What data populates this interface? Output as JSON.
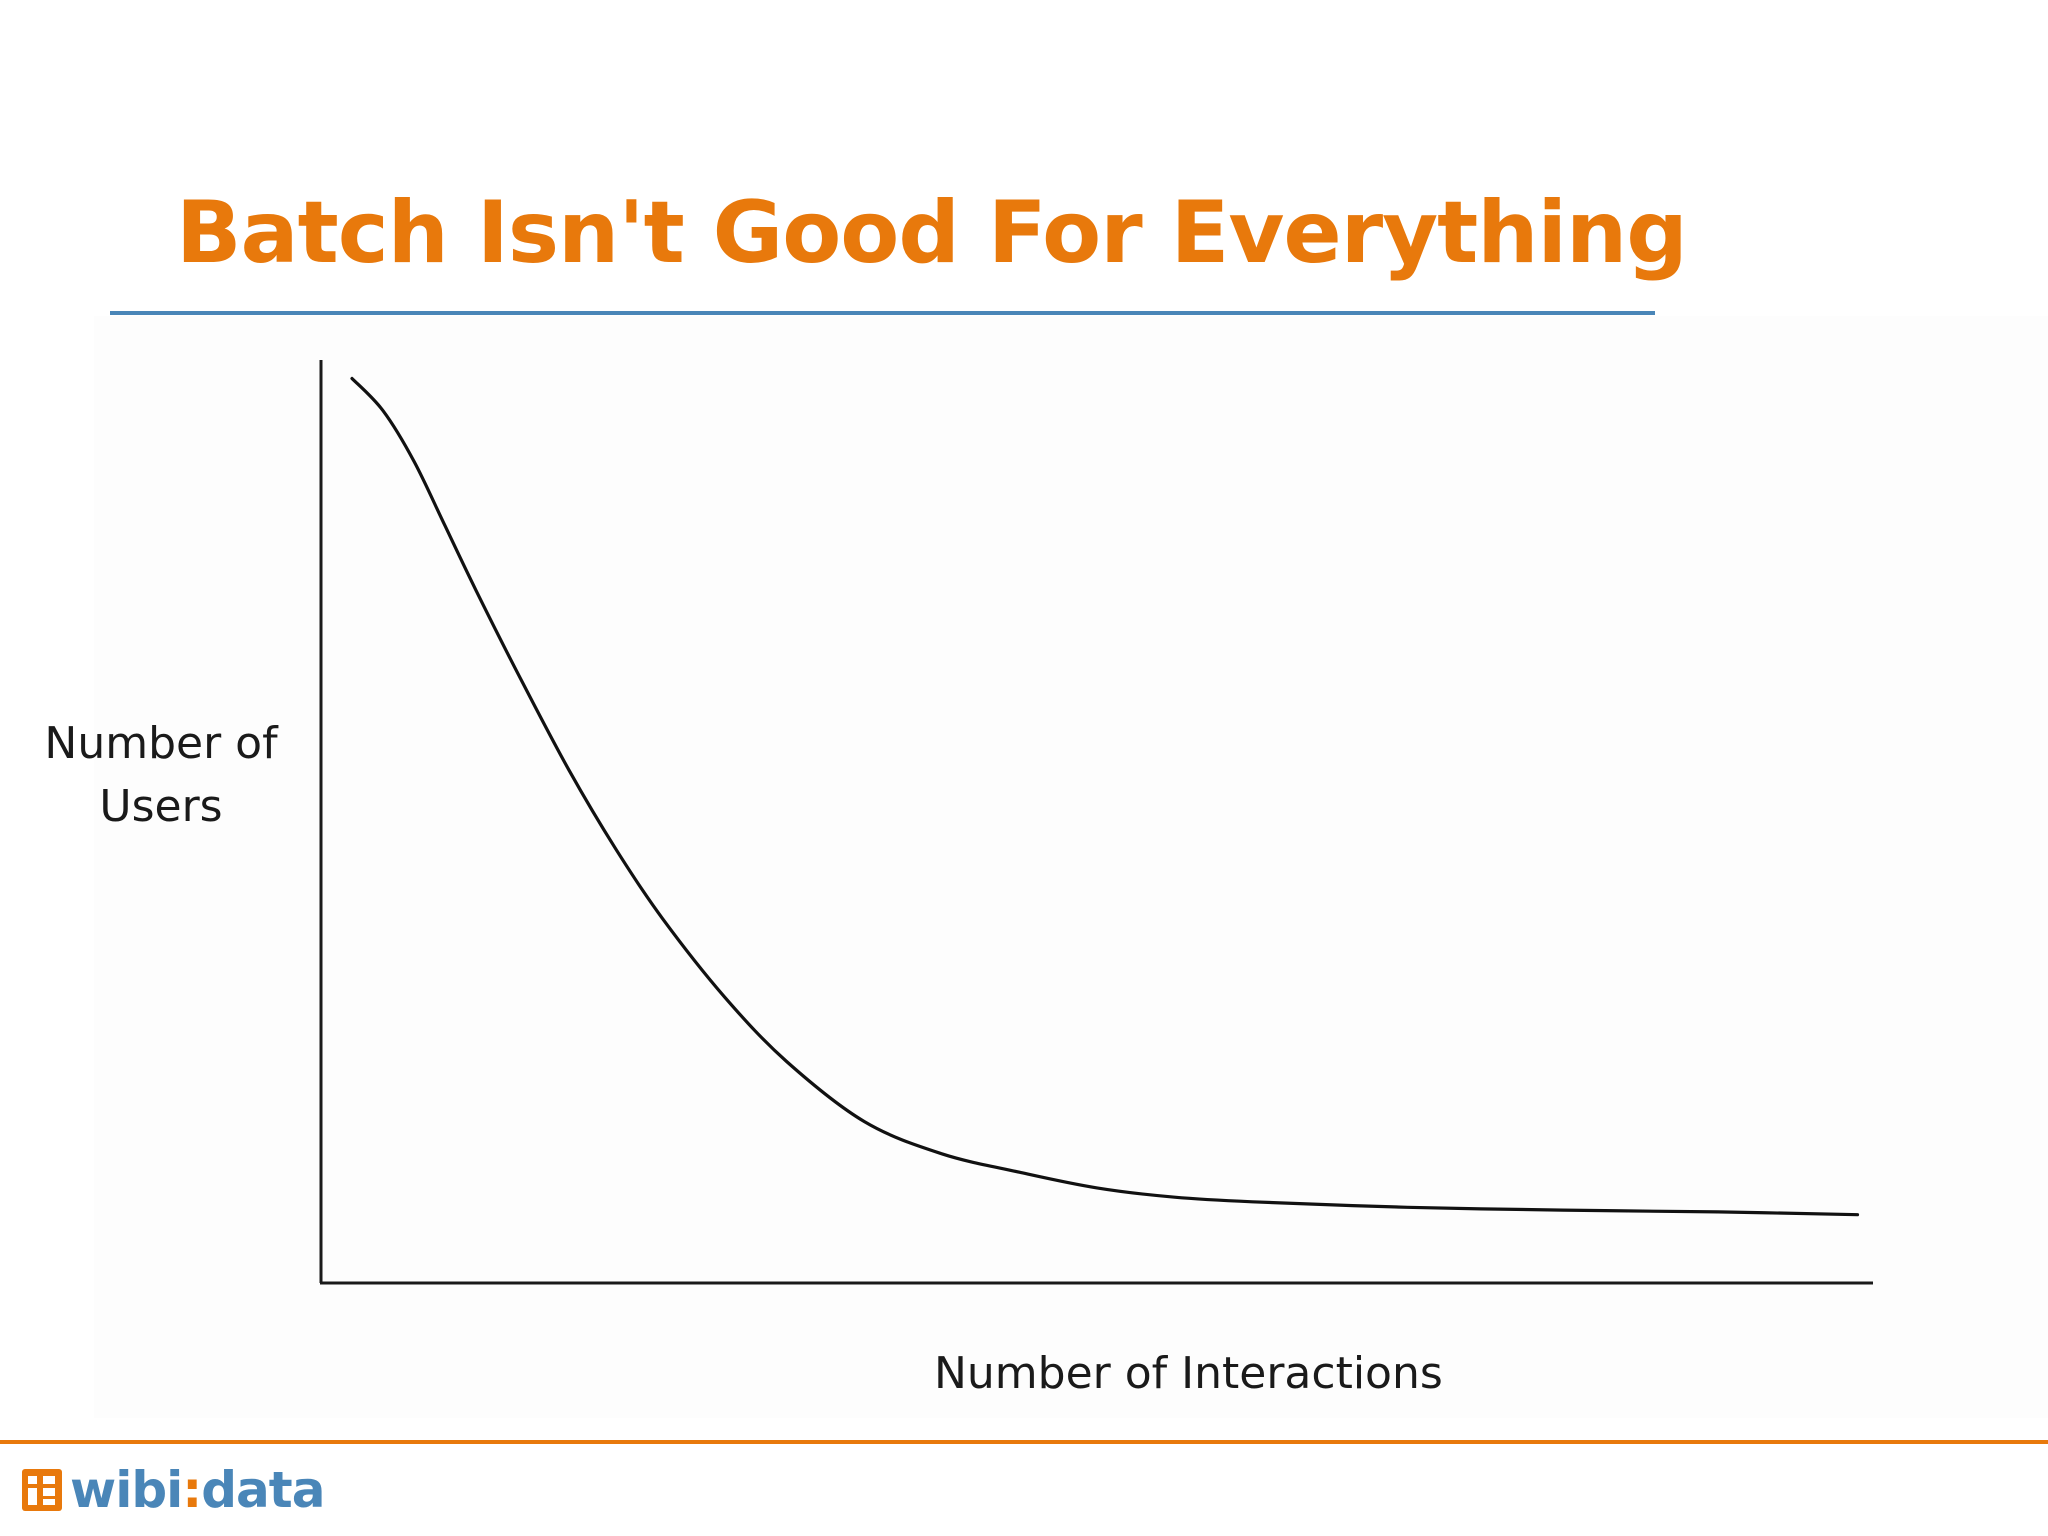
{
  "slide": {
    "title": "Batch Isn't Good For Everything",
    "logo_prefix": "wibi",
    "logo_suffix": "data"
  },
  "colors": {
    "title": "#e8790c",
    "title_rule": "#4a86b8",
    "footer_rule": "#e8790c",
    "logo_wibi": "#4a86b8",
    "logo_data": "#4a86b8",
    "logo_mark": "#e8790c",
    "axis": "#1a1a1a",
    "curve": "#111111"
  },
  "chart_data": {
    "type": "line",
    "title": "",
    "xlabel": "Number of Interactions",
    "ylabel_lines": [
      "Number of",
      "Users"
    ],
    "xlim": [
      0,
      100
    ],
    "ylim": [
      0,
      100
    ],
    "grid": false,
    "legend": "none",
    "x_ticks": [],
    "y_ticks": [],
    "series": [
      {
        "name": "users",
        "x": [
          2,
          4,
          6,
          8,
          10,
          13,
          16,
          19,
          22,
          26,
          30,
          35,
          40,
          45,
          50,
          55,
          60,
          70,
          80,
          90,
          99
        ],
        "y": [
          98,
          94.5,
          89,
          82,
          75,
          65,
          55.5,
          47,
          39.5,
          31,
          24,
          17.5,
          14,
          12,
          10.3,
          9.3,
          8.8,
          8.2,
          7.9,
          7.7,
          7.4
        ]
      }
    ]
  }
}
